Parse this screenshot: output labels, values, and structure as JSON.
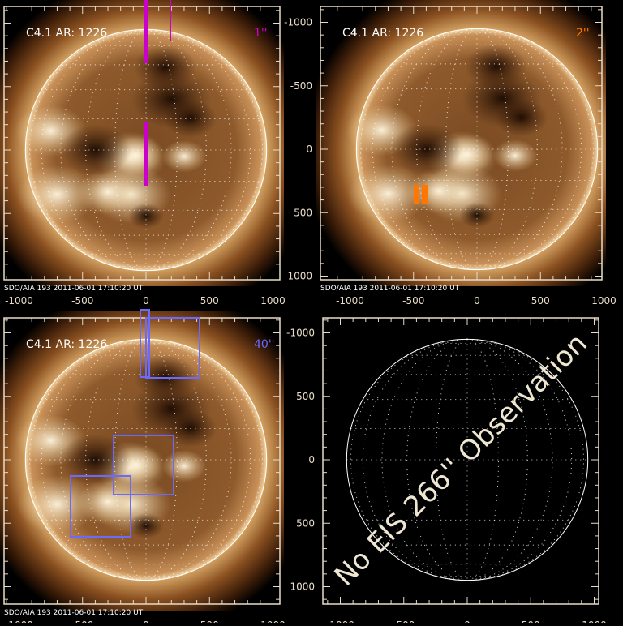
{
  "panels": [
    {
      "id": "tl",
      "title": "C4.1 AR: 1226",
      "slit_label": "1''",
      "slit_color": "#cc00cc",
      "footer": "SDO/AIA 193   2011-06-01 17:10:20 UT",
      "has_image": true
    },
    {
      "id": "tr",
      "title": "C4.1 AR: 1226",
      "slit_label": "2''",
      "slit_color": "#ff7700",
      "footer": "SDO/AIA 193   2011-06-01 17:10:20 UT",
      "has_image": true
    },
    {
      "id": "bl",
      "title": "C4.1 AR: 1226",
      "slit_label": "40''",
      "slit_color": "#6a6aff",
      "footer": "SDO/AIA 193   2011-06-01 17:10:20 UT",
      "has_image": true
    },
    {
      "id": "br",
      "message": "No EIS 266'' Observation",
      "has_image": false
    }
  ],
  "axes": {
    "x_ticks": [
      "-1000",
      "-500",
      "0",
      "500",
      "1000"
    ],
    "y_ticks": [
      "1000",
      "500",
      "0",
      "-500",
      "-1000"
    ]
  },
  "colors": {
    "axis": "#e8dcc8",
    "message": "#efe6d2"
  }
}
